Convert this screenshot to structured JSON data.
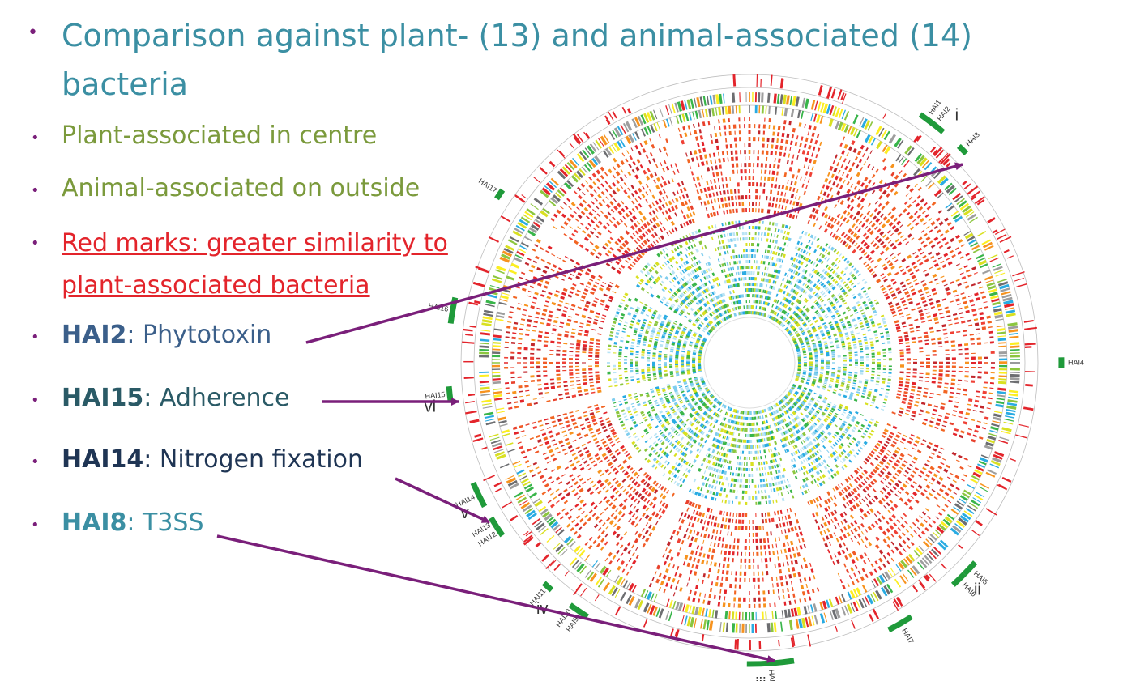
{
  "slide": {
    "title": "Comparison against plant- (13) and animal-associated (14) bacteria",
    "bullets": {
      "b1": "Plant-associated in centre",
      "b2": "Animal-associated on outside",
      "b3_line1": "Red marks: greater similarity to",
      "b3_line2": "plant-associated bacteria",
      "hai2_name": "HAI2",
      "hai2_desc": ": Phytotoxin",
      "hai15_name": "HAI15",
      "hai15_desc": ": Adherence",
      "hai14_name": "HAI14",
      "hai14_desc": ": Nitrogen fixation",
      "hai8_name": "HAI8",
      "hai8_desc": ": T3SS"
    }
  },
  "diagram": {
    "hai_labels": [
      "HAI1",
      "HAI2",
      "HAI3",
      "HAI4",
      "HAI5",
      "HAI6",
      "HAI7",
      "HAI8",
      "HAI9",
      "HAI10",
      "HAI11",
      "HAI12",
      "HAI13",
      "HAI14",
      "HAI15",
      "HAI16",
      "HAI17"
    ],
    "roman_labels": [
      "i",
      "ii",
      "iii",
      "iv",
      "v",
      "vi"
    ],
    "colors": {
      "arrow": "#7a1f7a",
      "hai_box": "#1f9a3a",
      "red_mark": "#e3242b",
      "title": "#3b8fa3",
      "green_text": "#7b9a3c",
      "hai_dark": "#2a4a6e"
    }
  }
}
